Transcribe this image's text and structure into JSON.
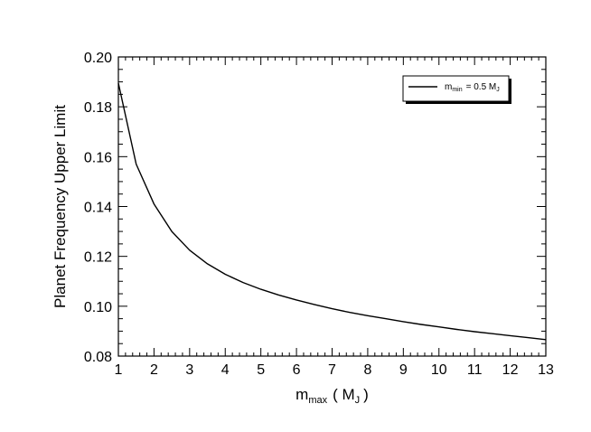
{
  "chart_data": {
    "type": "line",
    "xlabel": {
      "main": "m",
      "sub": "max",
      "unit_open": "( M",
      "unit_sub": "J",
      "unit_close": ")"
    },
    "ylabel": "Planet Frequency Upper Limit",
    "xlim": [
      1,
      13
    ],
    "ylim": [
      0.08,
      0.2
    ],
    "xticks": [
      1,
      2,
      3,
      4,
      5,
      6,
      7,
      8,
      9,
      10,
      11,
      12,
      13
    ],
    "xtick_labels": [
      "1",
      "2",
      "3",
      "4",
      "5",
      "6",
      "7",
      "8",
      "9",
      "10",
      "11",
      "12",
      "13"
    ],
    "yticks": [
      0.08,
      0.1,
      0.12,
      0.14,
      0.16,
      0.18,
      0.2
    ],
    "ytick_labels": [
      "0.08",
      "0.10",
      "0.12",
      "0.14",
      "0.16",
      "0.18",
      "0.20"
    ],
    "grid": false,
    "legend_position": "top-right",
    "legend": {
      "main": "m",
      "sub": "min",
      "value": "= 0.5  M",
      "unit_sub": "J"
    },
    "series": [
      {
        "color": "#000000",
        "x": [
          1.0,
          1.5,
          2.0,
          2.5,
          3.0,
          3.5,
          4.0,
          4.5,
          5.0,
          5.5,
          6.0,
          6.5,
          7.0,
          7.5,
          8.0,
          8.5,
          9.0,
          9.5,
          10.0,
          10.5,
          11.0,
          11.5,
          12.0,
          12.5,
          13.0
        ],
        "y": [
          0.1895,
          0.157,
          0.141,
          0.13,
          0.1225,
          0.117,
          0.1128,
          0.1095,
          0.1068,
          0.1045,
          0.1025,
          0.1007,
          0.099,
          0.0975,
          0.0962,
          0.095,
          0.0938,
          0.0927,
          0.0917,
          0.0907,
          0.0898,
          0.089,
          0.0882,
          0.0874,
          0.0866
        ]
      }
    ]
  }
}
